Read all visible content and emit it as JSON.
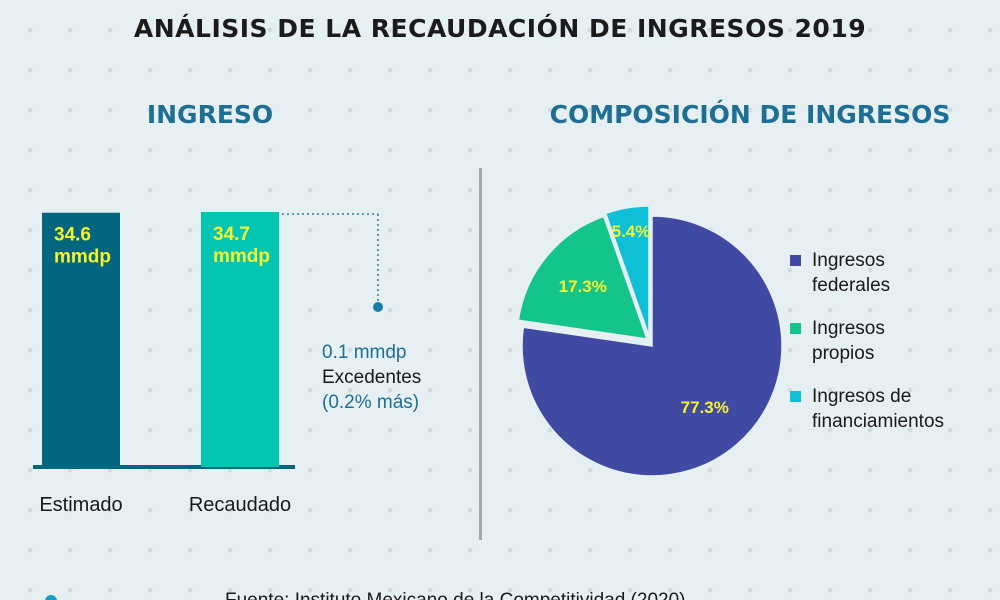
{
  "title": "ANÁLISIS DE LA RECAUDACIÓN DE INGRESOS 2019",
  "left_section": {
    "title": "INGRESO"
  },
  "right_section": {
    "title": "COMPOSICIÓN DE INGRESOS"
  },
  "annotation": {
    "amount": "0.1 mmdp",
    "label": "Excedentes",
    "percent": "(0.2% más)"
  },
  "footer": {
    "source": "Fuente: Instituto Mexicano de la Competitividad (2020)"
  },
  "colors": {
    "estimado": "#02667f",
    "recaudado": "#02c6b2",
    "federales": "#414aa2",
    "propios": "#13c48b",
    "financiamientos": "#0fbfd6",
    "value_label": "#f7f22e",
    "accent": "#1e6f93"
  },
  "chart_data": [
    {
      "type": "bar",
      "categories": [
        "Estimado",
        "Recaudado"
      ],
      "values": [
        34.6,
        34.7
      ],
      "value_labels": [
        "34.6\nmmdp",
        "34.7\nmmdp"
      ],
      "title": "INGRESO",
      "xlabel": "",
      "ylabel": "",
      "grid": false
    },
    {
      "type": "pie",
      "title": "COMPOSICIÓN DE INGRESOS",
      "categories": [
        "Ingresos federales",
        "Ingresos propios",
        "Ingresos de financiamientos"
      ],
      "values": [
        77.3,
        17.3,
        5.4
      ],
      "value_labels": [
        "77.3%",
        "17.3%",
        "5.4%"
      ],
      "legend": "right"
    }
  ]
}
